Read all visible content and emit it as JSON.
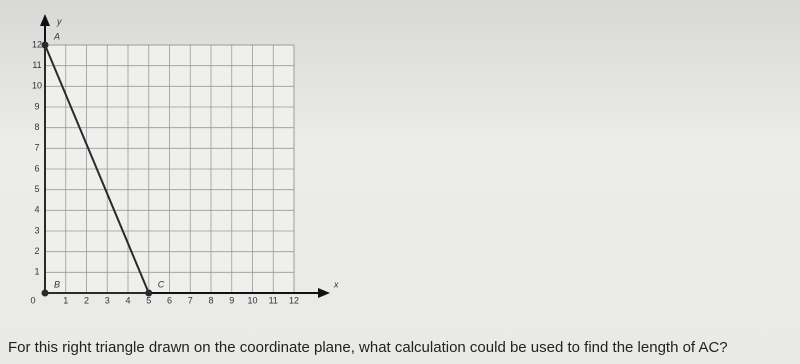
{
  "figure": {
    "type": "coordinate-plane",
    "x_label": "x",
    "y_label": "y",
    "xlim": [
      0,
      12
    ],
    "ylim": [
      0,
      12
    ],
    "xticks": [
      0,
      1,
      2,
      3,
      4,
      5,
      6,
      7,
      8,
      9,
      10,
      11,
      12
    ],
    "yticks": [
      1,
      2,
      3,
      4,
      5,
      6,
      7,
      8,
      9,
      10,
      11,
      12
    ],
    "grid": true,
    "color": "#2a2a2a",
    "points": [
      {
        "label": "A",
        "x": 0,
        "y": 12
      },
      {
        "label": "B",
        "x": 0,
        "y": 0
      },
      {
        "label": "C",
        "x": 5,
        "y": 0
      }
    ]
  },
  "question": "For this right triangle drawn on the coordinate plane, what calculation could be used to find the length of AC?"
}
